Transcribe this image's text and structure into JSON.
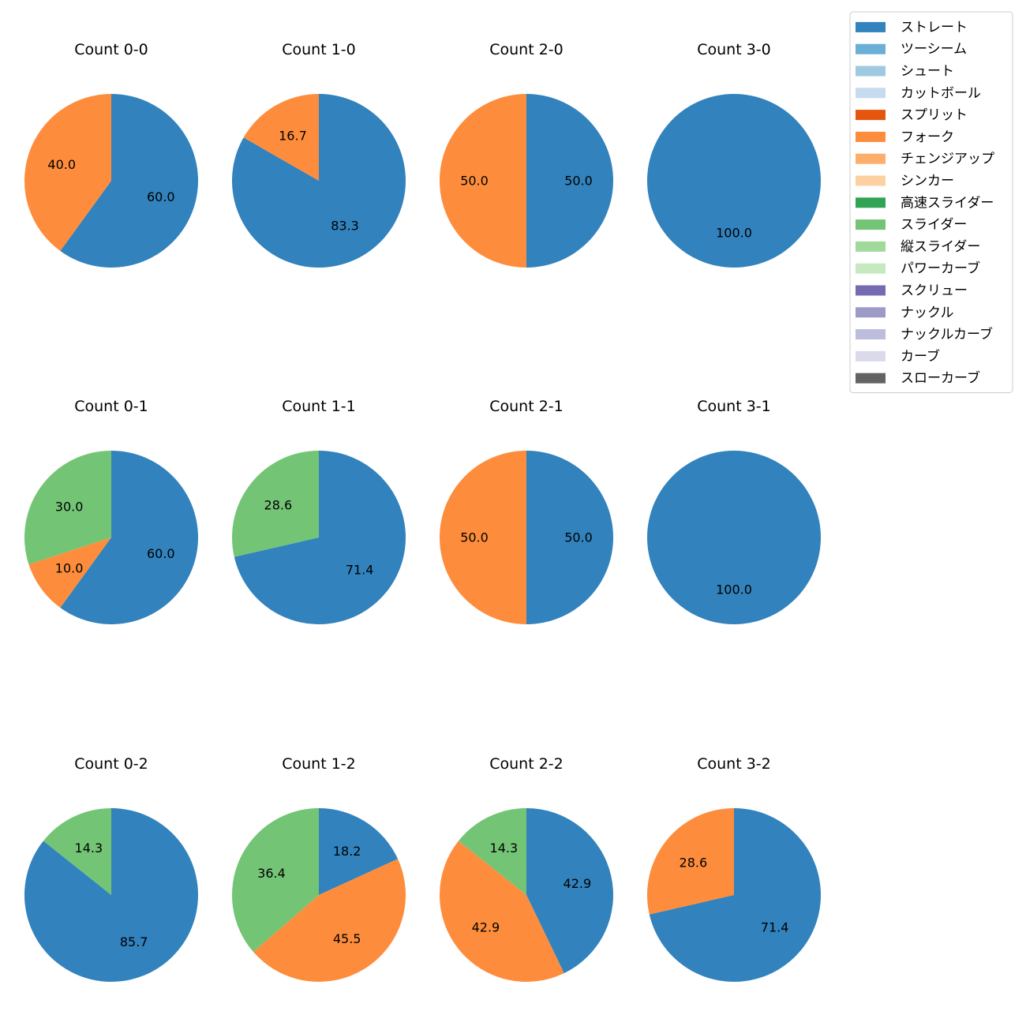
{
  "chart_data": {
    "type": "pie",
    "legend_position": "top-right",
    "legend": [
      {
        "name": "ストレート",
        "color": "#3182bd"
      },
      {
        "name": "ツーシーム",
        "color": "#6baed6"
      },
      {
        "name": "シュート",
        "color": "#9ecae1"
      },
      {
        "name": "カットボール",
        "color": "#c6dbef"
      },
      {
        "name": "スプリット",
        "color": "#e6550d"
      },
      {
        "name": "フォーク",
        "color": "#fd8d3c"
      },
      {
        "name": "チェンジアップ",
        "color": "#fdae6b"
      },
      {
        "name": "シンカー",
        "color": "#fdd0a2"
      },
      {
        "name": "高速スライダー",
        "color": "#31a354"
      },
      {
        "name": "スライダー",
        "color": "#74c476"
      },
      {
        "name": "縦スライダー",
        "color": "#a1d99b"
      },
      {
        "name": "パワーカーブ",
        "color": "#c7e9c0"
      },
      {
        "name": "スクリュー",
        "color": "#756bb1"
      },
      {
        "name": "ナックル",
        "color": "#9e9ac8"
      },
      {
        "name": "ナックルカーブ",
        "color": "#bcbddc"
      },
      {
        "name": "カーブ",
        "color": "#dadaeb"
      },
      {
        "name": "スローカーブ",
        "color": "#636363"
      }
    ],
    "charts": [
      {
        "title": "Count 0-0",
        "slices": [
          {
            "name": "ストレート",
            "value": 60.0,
            "label": "60.0"
          },
          {
            "name": "フォーク",
            "value": 40.0,
            "label": "40.0"
          }
        ]
      },
      {
        "title": "Count 1-0",
        "slices": [
          {
            "name": "ストレート",
            "value": 83.3,
            "label": "83.3"
          },
          {
            "name": "フォーク",
            "value": 16.7,
            "label": "16.7"
          }
        ]
      },
      {
        "title": "Count 2-0",
        "slices": [
          {
            "name": "ストレート",
            "value": 50.0,
            "label": "50.0"
          },
          {
            "name": "フォーク",
            "value": 50.0,
            "label": "50.0"
          }
        ]
      },
      {
        "title": "Count 3-0",
        "slices": [
          {
            "name": "ストレート",
            "value": 100.0,
            "label": "100.0"
          }
        ]
      },
      {
        "title": "Count 0-1",
        "slices": [
          {
            "name": "ストレート",
            "value": 60.0,
            "label": "60.0"
          },
          {
            "name": "フォーク",
            "value": 10.0,
            "label": "10.0"
          },
          {
            "name": "スライダー",
            "value": 30.0,
            "label": "30.0"
          }
        ]
      },
      {
        "title": "Count 1-1",
        "slices": [
          {
            "name": "ストレート",
            "value": 71.4,
            "label": "71.4"
          },
          {
            "name": "スライダー",
            "value": 28.6,
            "label": "28.6"
          }
        ]
      },
      {
        "title": "Count 2-1",
        "slices": [
          {
            "name": "ストレート",
            "value": 50.0,
            "label": "50.0"
          },
          {
            "name": "フォーク",
            "value": 50.0,
            "label": "50.0"
          }
        ]
      },
      {
        "title": "Count 3-1",
        "slices": [
          {
            "name": "ストレート",
            "value": 100.0,
            "label": "100.0"
          }
        ]
      },
      {
        "title": "Count 0-2",
        "slices": [
          {
            "name": "ストレート",
            "value": 85.7,
            "label": "85.7"
          },
          {
            "name": "スライダー",
            "value": 14.3,
            "label": "14.3"
          }
        ]
      },
      {
        "title": "Count 1-2",
        "slices": [
          {
            "name": "ストレート",
            "value": 18.2,
            "label": "18.2"
          },
          {
            "name": "フォーク",
            "value": 45.5,
            "label": "45.5"
          },
          {
            "name": "スライダー",
            "value": 36.4,
            "label": "36.4"
          }
        ]
      },
      {
        "title": "Count 2-2",
        "slices": [
          {
            "name": "ストレート",
            "value": 42.9,
            "label": "42.9"
          },
          {
            "name": "フォーク",
            "value": 42.9,
            "label": "42.9"
          },
          {
            "name": "スライダー",
            "value": 14.3,
            "label": "14.3"
          }
        ]
      },
      {
        "title": "Count 3-2",
        "slices": [
          {
            "name": "ストレート",
            "value": 71.4,
            "label": "71.4"
          },
          {
            "name": "フォーク",
            "value": 28.6,
            "label": "28.6"
          }
        ]
      }
    ]
  }
}
